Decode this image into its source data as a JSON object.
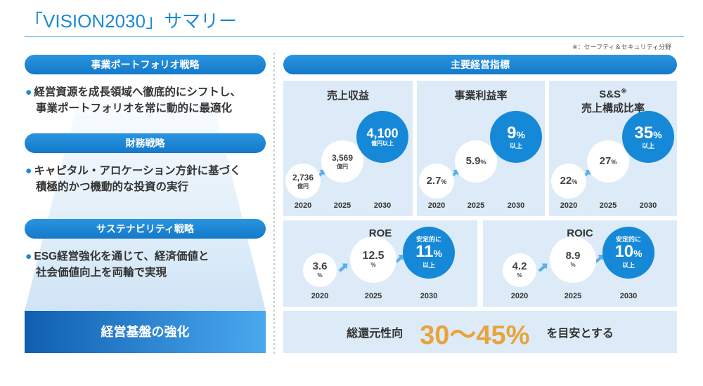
{
  "title": "「VISION2030」サマリー",
  "note": "※：セーフティ＆セキュリティ分野",
  "left": {
    "sections": [
      {
        "heading": "事業ポートフォリオ戦略",
        "lines": [
          "経営資源を成長領域へ徹底的にシフトし、",
          "事業ポートフォリオを常に動的に最適化"
        ]
      },
      {
        "heading": "財務戦略",
        "lines": [
          "キャピタル・アロケーション方針に基づく",
          "積極的かつ機動的な投資の実行"
        ]
      },
      {
        "heading": "サステナビリティ戦略",
        "lines": [
          "ESG経営強化を通じて、経済価値と",
          "社会価値向上を両輪で実現"
        ]
      }
    ],
    "foundation": "経営基盤の強化"
  },
  "kpi": {
    "heading": "主要経営指標",
    "panels": [
      {
        "title": "売上収益",
        "points": [
          {
            "year": "2020",
            "value": "2,736",
            "unit": "億円"
          },
          {
            "year": "2025",
            "value": "3,569",
            "unit": "億円"
          },
          {
            "year": "2030",
            "value": "4,100",
            "unit": "億円以上"
          }
        ]
      },
      {
        "title": "事業利益率",
        "points": [
          {
            "year": "2020",
            "value": "2.7",
            "unit": "%"
          },
          {
            "year": "2025",
            "value": "5.9",
            "unit": "%"
          },
          {
            "year": "2030",
            "value": "9",
            "unit": "%",
            "suffix": "以上"
          }
        ]
      },
      {
        "title": "S&S",
        "title_mark": "※",
        "subtitle": "売上構成比率",
        "points": [
          {
            "year": "2020",
            "value": "22",
            "unit": "%"
          },
          {
            "year": "2025",
            "value": "27",
            "unit": "%"
          },
          {
            "year": "2030",
            "value": "35",
            "unit": "%",
            "suffix": "以上"
          }
        ]
      },
      {
        "title": "ROE",
        "points": [
          {
            "year": "2020",
            "value": "3.6",
            "unit": "%"
          },
          {
            "year": "2025",
            "value": "12.5",
            "unit": "%"
          },
          {
            "year": "2030",
            "prefix": "安定的に",
            "value": "11",
            "unit": "%",
            "suffix": "以上"
          }
        ]
      },
      {
        "title": "ROIC",
        "points": [
          {
            "year": "2020",
            "value": "4.2",
            "unit": "%"
          },
          {
            "year": "2025",
            "value": "8.9",
            "unit": "%"
          },
          {
            "year": "2030",
            "prefix": "安定的に",
            "value": "10",
            "unit": "%",
            "suffix": "以上"
          }
        ]
      }
    ],
    "payout": {
      "label": "総還元性向",
      "value": "30～45%",
      "suffix": "を目安とする"
    }
  }
}
